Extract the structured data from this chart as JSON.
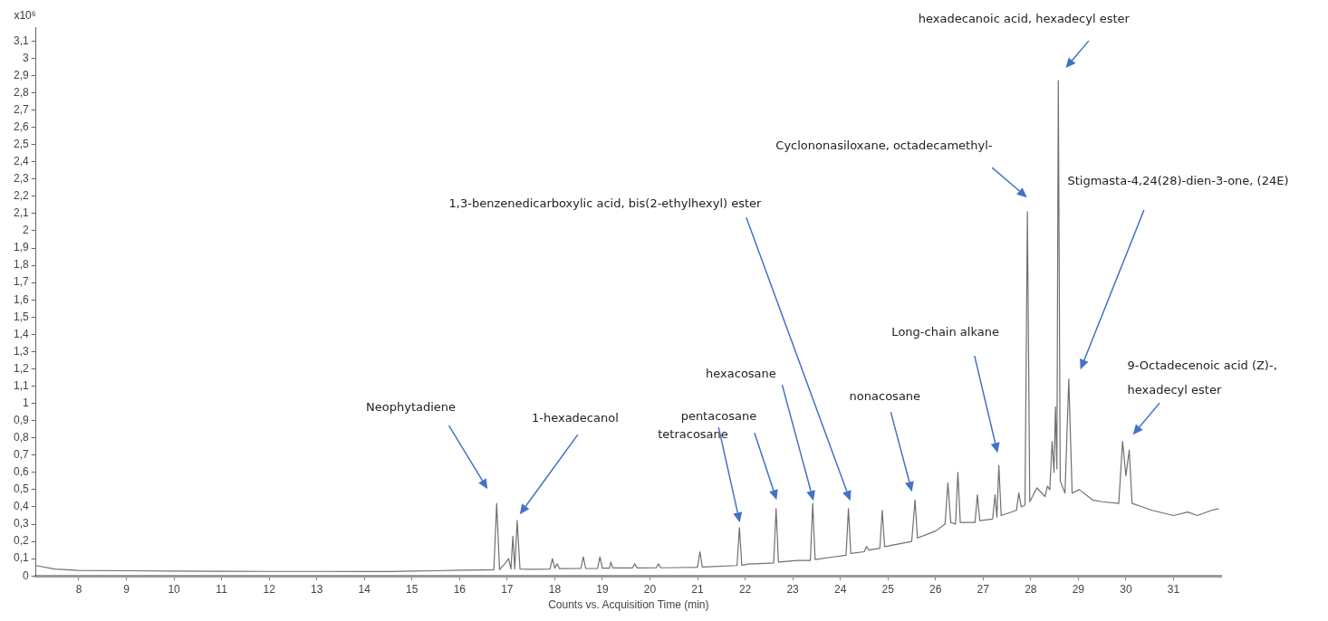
{
  "chart_data": {
    "type": "line",
    "xlabel": "Counts vs. Acquisition Time (min)",
    "ylabel": "x10⁶",
    "x": [
      7.1,
      7.5,
      8,
      9,
      10,
      11,
      12,
      13,
      14,
      14.5,
      15,
      15.5,
      16,
      16.5,
      16.72,
      16.78,
      16.84,
      16.95,
      17.03,
      17.08,
      17.12,
      17.16,
      17.21,
      17.27,
      17.5,
      17.9,
      17.95,
      18.0,
      18.05,
      18.1,
      18.55,
      18.6,
      18.65,
      18.9,
      18.95,
      19.0,
      19.15,
      19.18,
      19.22,
      19.63,
      19.68,
      19.73,
      20.13,
      20.18,
      20.23,
      21.0,
      21.05,
      21.1,
      21.83,
      21.88,
      21.93,
      22.1,
      22.2,
      22.6,
      22.65,
      22.7,
      23.1,
      23.37,
      23.42,
      23.47,
      23.85,
      24.12,
      24.17,
      24.22,
      24.5,
      24.55,
      24.6,
      24.83,
      24.88,
      24.93,
      25.5,
      25.57,
      25.62,
      26.0,
      26.2,
      26.26,
      26.32,
      26.42,
      26.47,
      26.52,
      26.83,
      26.88,
      26.93,
      27.2,
      27.25,
      27.29,
      27.33,
      27.38,
      27.7,
      27.75,
      27.8,
      27.88,
      27.93,
      27.98,
      28.13,
      28.3,
      28.35,
      28.4,
      28.45,
      28.49,
      28.52,
      28.55,
      28.58,
      28.62,
      28.72,
      28.8,
      28.87,
      29.02,
      29.3,
      29.5,
      29.85,
      29.93,
      30.0,
      30.07,
      30.13,
      30.35,
      30.55,
      31.0,
      31.3,
      31.5,
      31.8,
      31.95
    ],
    "series": [
      {
        "color": "#707070",
        "values": [
          0.06,
          0.04,
          0.032,
          0.03,
          0.028,
          0.027,
          0.026,
          0.026,
          0.025,
          0.025,
          0.028,
          0.03,
          0.033,
          0.035,
          0.036,
          0.42,
          0.037,
          0.07,
          0.1,
          0.04,
          0.23,
          0.04,
          0.32,
          0.04,
          0.038,
          0.04,
          0.1,
          0.045,
          0.07,
          0.042,
          0.043,
          0.11,
          0.043,
          0.044,
          0.11,
          0.045,
          0.045,
          0.08,
          0.046,
          0.046,
          0.07,
          0.046,
          0.047,
          0.07,
          0.047,
          0.05,
          0.14,
          0.052,
          0.06,
          0.28,
          0.062,
          0.07,
          0.07,
          0.075,
          0.39,
          0.08,
          0.09,
          0.09,
          0.42,
          0.095,
          0.11,
          0.12,
          0.39,
          0.13,
          0.14,
          0.17,
          0.15,
          0.16,
          0.38,
          0.17,
          0.2,
          0.44,
          0.22,
          0.26,
          0.3,
          0.54,
          0.31,
          0.3,
          0.6,
          0.31,
          0.31,
          0.47,
          0.32,
          0.33,
          0.47,
          0.34,
          0.64,
          0.35,
          0.38,
          0.48,
          0.4,
          0.41,
          2.11,
          0.43,
          0.51,
          0.46,
          0.52,
          0.5,
          0.78,
          0.6,
          0.98,
          0.62,
          2.87,
          0.55,
          0.48,
          1.14,
          0.48,
          0.5,
          0.44,
          0.43,
          0.42,
          0.78,
          0.58,
          0.73,
          0.42,
          0.4,
          0.38,
          0.35,
          0.37,
          0.35,
          0.38,
          0.39
        ]
      }
    ],
    "xlim": [
      7.1,
      32
    ],
    "xticks": [
      8,
      9,
      10,
      11,
      12,
      13,
      14,
      15,
      16,
      17,
      18,
      19,
      20,
      21,
      22,
      23,
      24,
      25,
      26,
      27,
      28,
      29,
      30,
      31
    ],
    "ylim": [
      0,
      3.18
    ],
    "yticks": [
      0,
      {
        "value": 0.1,
        "label": "0,1"
      },
      {
        "value": 0.2,
        "label": "0,2"
      },
      {
        "value": 0.3,
        "label": "0,3"
      },
      {
        "value": 0.4,
        "label": "0,4"
      },
      {
        "value": 0.5,
        "label": "0,5"
      },
      {
        "value": 0.6,
        "label": "0,6"
      },
      {
        "value": 0.7,
        "label": "0,7"
      },
      {
        "value": 0.8,
        "label": "0,8"
      },
      {
        "value": 0.9,
        "label": "0,9"
      },
      1,
      {
        "value": 1.1,
        "label": "1,1"
      },
      {
        "value": 1.2,
        "label": "1,2"
      },
      {
        "value": 1.3,
        "label": "1,3"
      },
      {
        "value": 1.4,
        "label": "1,4"
      },
      {
        "value": 1.5,
        "label": "1,5"
      },
      {
        "value": 1.6,
        "label": "1,6"
      },
      {
        "value": 1.7,
        "label": "1,7"
      },
      {
        "value": 1.8,
        "label": "1,8"
      },
      {
        "value": 1.9,
        "label": "1,9"
      },
      2,
      {
        "value": 2.1,
        "label": "2,1"
      },
      {
        "value": 2.2,
        "label": "2,2"
      },
      {
        "value": 2.3,
        "label": "2,3"
      },
      {
        "value": 2.4,
        "label": "2,4"
      },
      {
        "value": 2.5,
        "label": "2,5"
      },
      {
        "value": 2.6,
        "label": "2,6"
      },
      {
        "value": 2.7,
        "label": "2,7"
      },
      {
        "value": 2.8,
        "label": "2,8"
      },
      {
        "value": 2.9,
        "label": "2,9"
      },
      3,
      {
        "value": 3.1,
        "label": "3,1"
      }
    ],
    "grid": false,
    "legend": false,
    "marker": "none",
    "line_style": "solid",
    "annotations": [
      "Neophytadiene",
      "1-hexadecanol",
      "tetracosane",
      "pentacosane",
      "hexacosane",
      "1,3-benzenedicarboxylic acid, bis(2-ethylhexyl) ester",
      "nonacosane",
      "Long-chain alkane",
      "Cyclononasiloxane, octadecamethyl-",
      "hexadecanoic acid, hexadecyl ester",
      "Stigmasta-4,24(28)-dien-3-one, (24E)",
      "9-Octadecenoic acid (Z)-, hexadecyl ester"
    ]
  }
}
